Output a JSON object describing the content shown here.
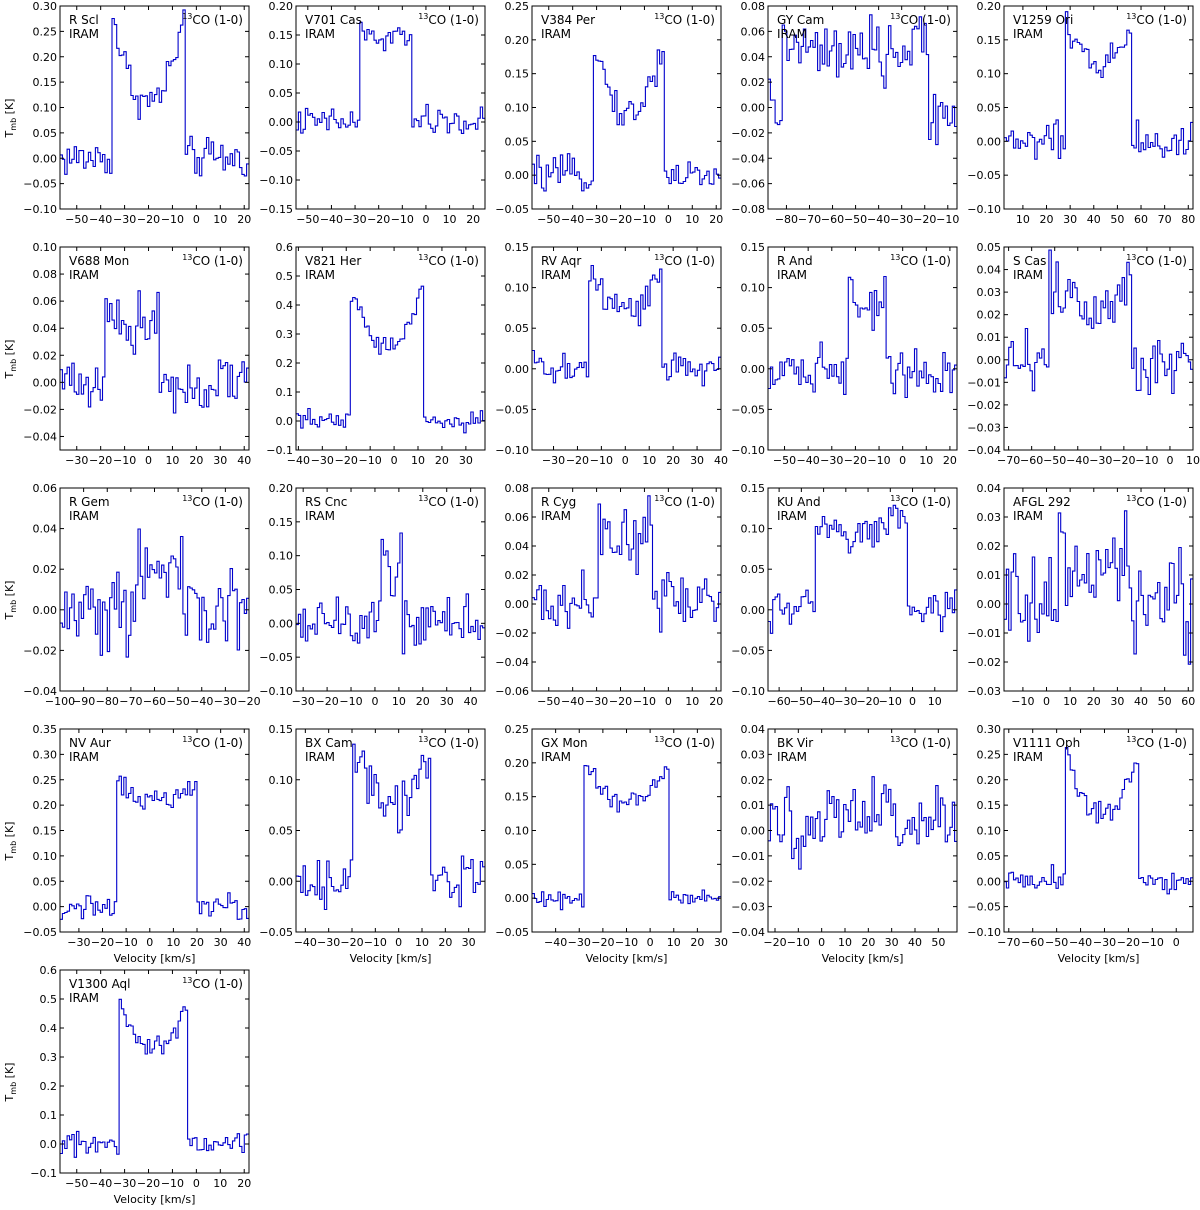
{
  "figure": {
    "x_axis_label": "Velocity [km/s]",
    "y_axis_label_main": "T",
    "y_axis_label_sub": "mb",
    "y_axis_label_unit": " [K]",
    "line_label_sup": "13",
    "line_label": "CO (1-0)",
    "line_color": "#0000cc"
  },
  "chart_data": [
    {
      "type": "line",
      "name": "R Scl",
      "telescope": "IRAM",
      "xlim": [
        -57,
        22
      ],
      "ylim": [
        -0.1,
        0.3
      ],
      "xticks": [
        -50,
        -40,
        -30,
        -20,
        -10,
        0,
        10,
        20
      ],
      "yticks": [
        -0.1,
        -0.05,
        0.0,
        0.05,
        0.1,
        0.15,
        0.2,
        0.25,
        0.3
      ],
      "yfmt": 2,
      "xlabel": false,
      "ylabel": true,
      "profile": {
        "v0": -20,
        "half": 15,
        "peak": 0.11,
        "horn": 0.28,
        "noise": 0.032,
        "base": 0
      }
    },
    {
      "type": "line",
      "name": "V701 Cas",
      "telescope": "IRAM",
      "xlim": [
        -55,
        25
      ],
      "ylim": [
        -0.15,
        0.2
      ],
      "xticks": [
        -50,
        -40,
        -30,
        -20,
        -10,
        0,
        10,
        20
      ],
      "yticks": [
        -0.15,
        -0.1,
        -0.05,
        0.0,
        0.05,
        0.1,
        0.15,
        0.2
      ],
      "yfmt": 2,
      "xlabel": false,
      "ylabel": false,
      "profile": {
        "v0": -17,
        "half": 11,
        "peak": 0.14,
        "horn": 0.16,
        "noise": 0.02,
        "base": 0
      }
    },
    {
      "type": "line",
      "name": "V384 Per",
      "telescope": "IRAM",
      "xlim": [
        -57,
        22
      ],
      "ylim": [
        -0.05,
        0.25
      ],
      "xticks": [
        -50,
        -40,
        -30,
        -20,
        -10,
        0,
        10,
        20
      ],
      "yticks": [
        -0.05,
        0.0,
        0.05,
        0.1,
        0.15,
        0.2,
        0.25
      ],
      "yfmt": 2,
      "xlabel": false,
      "ylabel": false,
      "profile": {
        "v0": -16.5,
        "half": 14.5,
        "peak": 0.09,
        "horn": 0.2,
        "noise": 0.02,
        "base": 0
      }
    },
    {
      "type": "line",
      "name": "GY Cam",
      "telescope": "IRAM",
      "xlim": [
        -88,
        -6
      ],
      "ylim": [
        -0.08,
        0.08
      ],
      "xticks": [
        -80,
        -70,
        -60,
        -50,
        -40,
        -30,
        -20,
        -10
      ],
      "yticks": [
        -0.08,
        -0.06,
        -0.04,
        -0.02,
        0.0,
        0.02,
        0.04,
        0.06,
        0.08
      ],
      "yfmt": 2,
      "xlabel": false,
      "ylabel": false,
      "profile": {
        "v0": -50,
        "half": 32,
        "peak": 0.04,
        "horn": 0.05,
        "noise": 0.02,
        "base": 0
      }
    },
    {
      "type": "line",
      "name": "V1259 Ori",
      "telescope": "IRAM",
      "xlim": [
        2,
        82
      ],
      "ylim": [
        -0.1,
        0.2
      ],
      "xticks": [
        10,
        20,
        30,
        40,
        50,
        60,
        70,
        80
      ],
      "yticks": [
        -0.1,
        -0.05,
        0.0,
        0.05,
        0.1,
        0.15,
        0.2
      ],
      "yfmt": 2,
      "xlabel": false,
      "ylabel": false,
      "profile": {
        "v0": 42,
        "half": 14,
        "peak": 0.12,
        "horn": 0.16,
        "noise": 0.025,
        "base": 0
      }
    },
    {
      "type": "line",
      "name": "V688 Mon",
      "telescope": "IRAM",
      "xlim": [
        -37,
        42
      ],
      "ylim": [
        -0.05,
        0.1
      ],
      "xticks": [
        -30,
        -20,
        -10,
        0,
        10,
        20,
        30,
        40
      ],
      "yticks": [
        -0.04,
        -0.02,
        0.0,
        0.02,
        0.04,
        0.06,
        0.08,
        0.1
      ],
      "yfmt": 2,
      "xlabel": false,
      "ylabel": true,
      "profile": {
        "v0": -7,
        "half": 11,
        "peak": 0.04,
        "horn": 0.06,
        "noise": 0.018,
        "base": 0
      }
    },
    {
      "type": "line",
      "name": "V821 Her",
      "telescope": "IRAM",
      "xlim": [
        -41,
        38
      ],
      "ylim": [
        -0.1,
        0.6
      ],
      "xticks": [
        -40,
        -30,
        -20,
        -10,
        0,
        10,
        20,
        30
      ],
      "yticks": [
        -0.1,
        0.0,
        0.1,
        0.2,
        0.3,
        0.4,
        0.5,
        0.6
      ],
      "yfmt": 1,
      "xlabel": false,
      "ylabel": false,
      "profile": {
        "v0": -3,
        "half": 15,
        "peak": 0.26,
        "horn": 0.45,
        "noise": 0.03,
        "base": 0
      }
    },
    {
      "type": "line",
      "name": "RV Aqr",
      "telescope": "IRAM",
      "xlim": [
        -39,
        40
      ],
      "ylim": [
        -0.1,
        0.15
      ],
      "xticks": [
        -30,
        -20,
        -10,
        0,
        10,
        20,
        30,
        40
      ],
      "yticks": [
        -0.1,
        -0.05,
        0.0,
        0.05,
        0.1,
        0.15
      ],
      "yfmt": 2,
      "xlabel": false,
      "ylabel": false,
      "profile": {
        "v0": 0,
        "half": 15,
        "peak": 0.07,
        "horn": 0.12,
        "noise": 0.02,
        "base": 0
      }
    },
    {
      "type": "line",
      "name": "R And",
      "telescope": "IRAM",
      "xlim": [
        -57,
        23
      ],
      "ylim": [
        -0.1,
        0.15
      ],
      "xticks": [
        -50,
        -40,
        -30,
        -20,
        -10,
        0,
        10,
        20
      ],
      "yticks": [
        -0.1,
        -0.05,
        0.0,
        0.05,
        0.1,
        0.15
      ],
      "yfmt": 2,
      "xlabel": false,
      "ylabel": false,
      "profile": {
        "v0": -15,
        "half": 8,
        "peak": 0.08,
        "horn": 0.1,
        "noise": 0.025,
        "base": 0
      }
    },
    {
      "type": "line",
      "name": "S Cas",
      "telescope": "IRAM",
      "xlim": [
        -72,
        10
      ],
      "ylim": [
        -0.04,
        0.05
      ],
      "xticks": [
        -70,
        -60,
        -50,
        -40,
        -30,
        -20,
        -10,
        0,
        10
      ],
      "yticks": [
        -0.04,
        -0.03,
        -0.02,
        -0.01,
        0.0,
        0.01,
        0.02,
        0.03,
        0.04,
        0.05
      ],
      "yfmt": 2,
      "xlabel": false,
      "ylabel": false,
      "profile": {
        "v0": -35,
        "half": 18,
        "peak": 0.025,
        "horn": 0.035,
        "noise": 0.012,
        "base": 0
      }
    },
    {
      "type": "line",
      "name": "R Gem",
      "telescope": "IRAM",
      "xlim": [
        -100,
        -20
      ],
      "ylim": [
        -0.04,
        0.06
      ],
      "xticks": [
        -100,
        -90,
        -80,
        -70,
        -60,
        -50,
        -40,
        -30,
        -20
      ],
      "yticks": [
        -0.04,
        -0.02,
        0.0,
        0.02,
        0.04,
        0.06
      ],
      "yfmt": 2,
      "xlabel": false,
      "ylabel": true,
      "profile": {
        "v0": -58,
        "half": 10,
        "peak": 0.02,
        "horn": 0.03,
        "noise": 0.018,
        "base": 0
      }
    },
    {
      "type": "line",
      "name": "RS Cnc",
      "telescope": "IRAM",
      "xlim": [
        -33,
        46
      ],
      "ylim": [
        -0.1,
        0.2
      ],
      "xticks": [
        -30,
        -20,
        -10,
        0,
        10,
        20,
        30,
        40
      ],
      "yticks": [
        -0.1,
        -0.05,
        0.0,
        0.05,
        0.1,
        0.15,
        0.2
      ],
      "yfmt": 2,
      "xlabel": false,
      "ylabel": false,
      "profile": {
        "v0": 7,
        "half": 4,
        "peak": 0.06,
        "horn": 0.12,
        "noise": 0.03,
        "base": 0
      }
    },
    {
      "type": "line",
      "name": "R Cyg",
      "telescope": "IRAM",
      "xlim": [
        -57,
        22
      ],
      "ylim": [
        -0.06,
        0.08
      ],
      "xticks": [
        -50,
        -40,
        -30,
        -20,
        -10,
        0,
        10,
        20
      ],
      "yticks": [
        -0.06,
        -0.04,
        -0.02,
        0.0,
        0.02,
        0.04,
        0.06,
        0.08
      ],
      "yfmt": 2,
      "xlabel": false,
      "ylabel": false,
      "profile": {
        "v0": -18,
        "half": 11,
        "peak": 0.04,
        "horn": 0.055,
        "noise": 0.018,
        "base": 0
      }
    },
    {
      "type": "line",
      "name": "KU And",
      "telescope": "IRAM",
      "xlim": [
        -65,
        20
      ],
      "ylim": [
        -0.1,
        0.15
      ],
      "xticks": [
        -60,
        -50,
        -40,
        -30,
        -20,
        -10,
        0,
        10
      ],
      "yticks": [
        -0.1,
        -0.05,
        0.0,
        0.05,
        0.1,
        0.15
      ],
      "yfmt": 2,
      "xlabel": false,
      "ylabel": false,
      "profile": {
        "v0": -23,
        "half": 21,
        "peak": 0.09,
        "horn": 0.11,
        "noise": 0.022,
        "base": 0
      }
    },
    {
      "type": "line",
      "name": "AFGL 292",
      "telescope": "IRAM",
      "xlim": [
        -18,
        62
      ],
      "ylim": [
        -0.03,
        0.04
      ],
      "xticks": [
        -10,
        0,
        10,
        20,
        30,
        40,
        50,
        60
      ],
      "yticks": [
        -0.03,
        -0.02,
        -0.01,
        0.0,
        0.01,
        0.02,
        0.03,
        0.04
      ],
      "yfmt": 2,
      "xlabel": false,
      "ylabel": false,
      "profile": {
        "v0": 20,
        "half": 15,
        "peak": 0.012,
        "horn": 0.015,
        "noise": 0.015,
        "base": 0
      }
    },
    {
      "type": "line",
      "name": "NV Aur",
      "telescope": "IRAM",
      "xlim": [
        -38,
        42
      ],
      "ylim": [
        -0.05,
        0.35
      ],
      "xticks": [
        -30,
        -20,
        -10,
        0,
        10,
        20,
        30,
        40
      ],
      "yticks": [
        -0.05,
        0.0,
        0.05,
        0.1,
        0.15,
        0.2,
        0.25,
        0.3,
        0.35
      ],
      "yfmt": 2,
      "xlabel": true,
      "ylabel": true,
      "profile": {
        "v0": 3,
        "half": 17,
        "peak": 0.21,
        "horn": 0.25,
        "noise": 0.02,
        "base": 0
      }
    },
    {
      "type": "line",
      "name": "BX Cam",
      "telescope": "IRAM",
      "xlim": [
        -44,
        37
      ],
      "ylim": [
        -0.05,
        0.15
      ],
      "xticks": [
        -40,
        -30,
        -20,
        -10,
        0,
        10,
        20,
        30
      ],
      "yticks": [
        -0.05,
        0.0,
        0.05,
        0.1,
        0.15
      ],
      "yfmt": 2,
      "xlabel": true,
      "ylabel": false,
      "profile": {
        "v0": -3,
        "half": 17,
        "peak": 0.07,
        "horn": 0.13,
        "noise": 0.02,
        "base": 0
      }
    },
    {
      "type": "line",
      "name": "GX Mon",
      "telescope": "IRAM",
      "xlim": [
        -50,
        30
      ],
      "ylim": [
        -0.05,
        0.25
      ],
      "xticks": [
        -40,
        -30,
        -20,
        -10,
        0,
        10,
        20,
        30
      ],
      "yticks": [
        -0.05,
        0.0,
        0.05,
        0.1,
        0.15,
        0.2,
        0.25
      ],
      "yfmt": 2,
      "xlabel": true,
      "ylabel": false,
      "profile": {
        "v0": -10,
        "half": 18,
        "peak": 0.14,
        "horn": 0.2,
        "noise": 0.012,
        "base": 0
      }
    },
    {
      "type": "line",
      "name": "BK Vir",
      "telescope": "IRAM",
      "xlim": [
        -23,
        58
      ],
      "ylim": [
        -0.04,
        0.04
      ],
      "xticks": [
        -20,
        -10,
        0,
        10,
        20,
        30,
        40,
        50
      ],
      "yticks": [
        -0.04,
        -0.03,
        -0.02,
        -0.01,
        0.0,
        0.01,
        0.02,
        0.03,
        0.04
      ],
      "yfmt": 2,
      "xlabel": true,
      "ylabel": false,
      "profile": {
        "v0": 17,
        "half": 15,
        "peak": 0.005,
        "horn": 0.008,
        "noise": 0.012,
        "base": 0
      }
    },
    {
      "type": "line",
      "name": "V1111 Oph",
      "telescope": "IRAM",
      "xlim": [
        -72,
        7
      ],
      "ylim": [
        -0.1,
        0.3
      ],
      "xticks": [
        -70,
        -60,
        -50,
        -40,
        -30,
        -20,
        -10,
        0
      ],
      "yticks": [
        -0.1,
        -0.05,
        0.0,
        0.05,
        0.1,
        0.15,
        0.2,
        0.25,
        0.3
      ],
      "yfmt": 2,
      "xlabel": true,
      "ylabel": false,
      "profile": {
        "v0": -31,
        "half": 15,
        "peak": 0.13,
        "horn": 0.26,
        "noise": 0.022,
        "base": 0
      }
    },
    {
      "type": "line",
      "name": "V1300 Aql",
      "telescope": "IRAM",
      "xlim": [
        -57,
        22
      ],
      "ylim": [
        -0.1,
        0.6
      ],
      "xticks": [
        -50,
        -40,
        -30,
        -20,
        -10,
        0,
        10,
        20
      ],
      "yticks": [
        -0.1,
        0.0,
        0.1,
        0.2,
        0.3,
        0.4,
        0.5,
        0.6
      ],
      "yfmt": 1,
      "xlabel": true,
      "ylabel": true,
      "profile": {
        "v0": -18,
        "half": 14,
        "peak": 0.33,
        "horn": 0.48,
        "noise": 0.035,
        "base": 0
      }
    }
  ]
}
